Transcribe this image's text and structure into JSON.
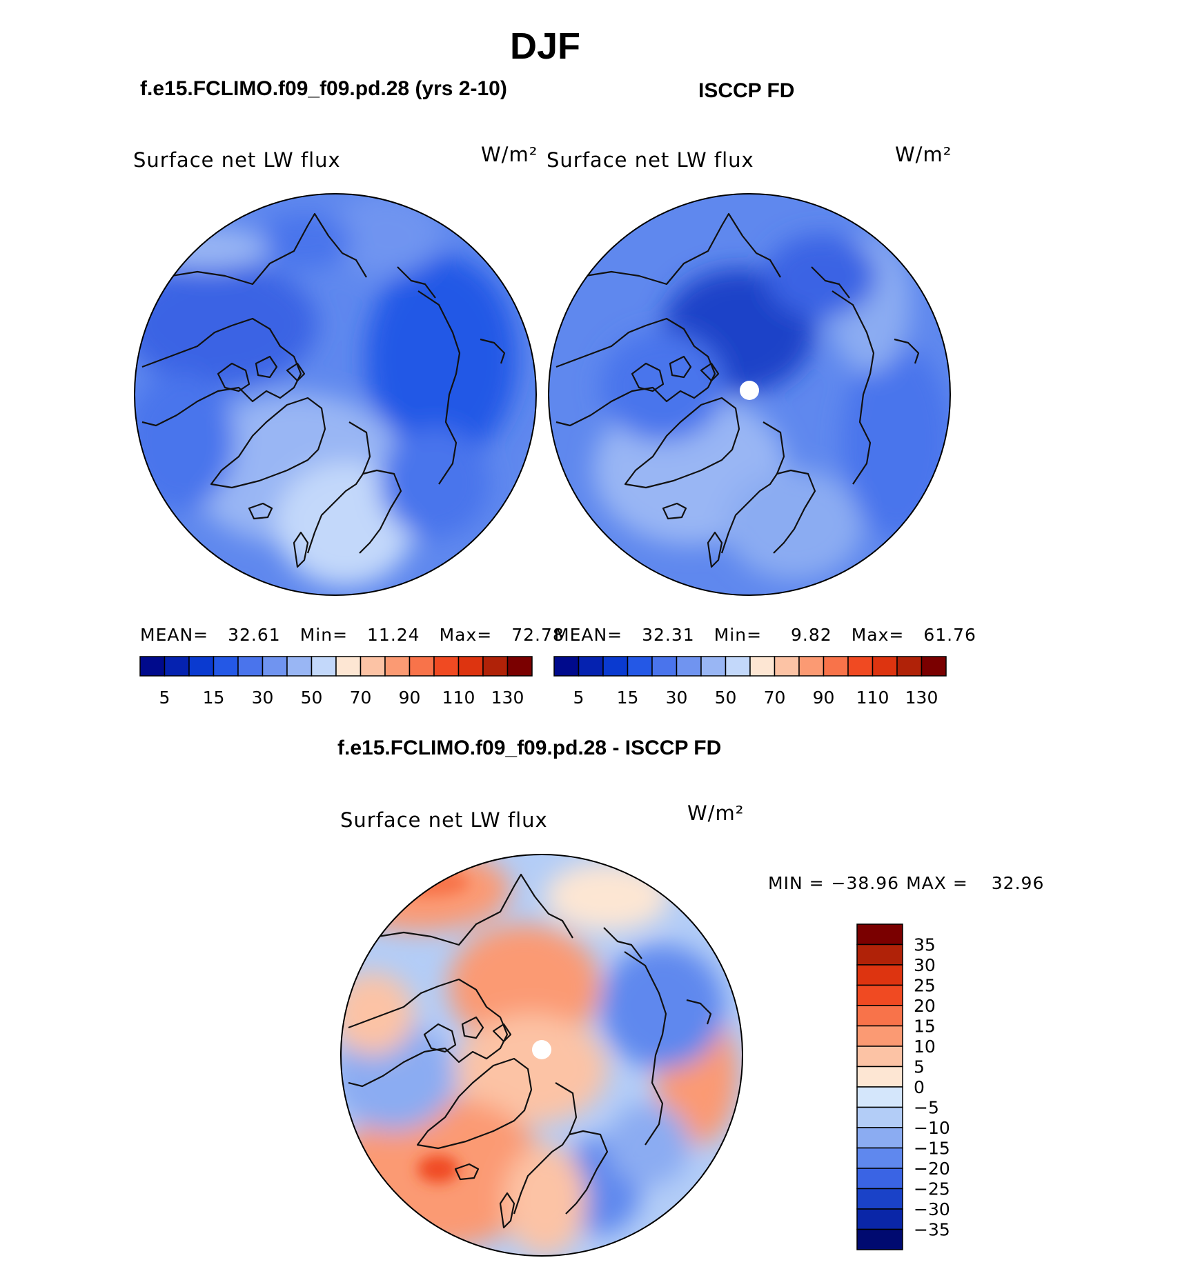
{
  "figure": {
    "title": "DJF",
    "diff_title": "f.e15.FCLIMO.f09_f09.pd.28 - ISCCP FD"
  },
  "panels": [
    {
      "case_title": "f.e15.FCLIMO.f09_f09.pd.28 (yrs 2-10)",
      "variable": "Surface net LW flux",
      "units": "W/m²",
      "stats": {
        "mean_label": "MEAN=",
        "mean": "32.61",
        "min_label": "Min=",
        "min": "11.24",
        "max_label": "Max=",
        "max": "72.78"
      }
    },
    {
      "case_title": "ISCCP FD",
      "variable": "Surface net LW flux",
      "units": "W/m²",
      "stats": {
        "mean_label": "MEAN=",
        "mean": "32.31",
        "min_label": "Min=",
        "min": "9.82",
        "max_label": "Max=",
        "max": "61.76"
      }
    }
  ],
  "diff_panel": {
    "variable": "Surface net LW flux",
    "units": "W/m²",
    "stats": {
      "min_label": "MIN =",
      "min": "−38.96",
      "max_label": "MAX =",
      "max": "32.96"
    }
  },
  "chart_data": [
    {
      "type": "heatmap",
      "name": "model",
      "projection": "north-polar-stereographic",
      "colorbar": {
        "orientation": "horizontal",
        "tick_labels": [
          "5",
          "15",
          "30",
          "50",
          "70",
          "90",
          "110",
          "130"
        ],
        "colors": [
          "#000a8c",
          "#0522b0",
          "#0a3ad0",
          "#2458e6",
          "#4a74ec",
          "#7094f0",
          "#99b6f4",
          "#c3d8fa",
          "#fde6d3",
          "#fcc3a5",
          "#fb9a73",
          "#f8734a",
          "#f04a22",
          "#dd3410",
          "#b02208",
          "#7a0000"
        ]
      }
    },
    {
      "type": "heatmap",
      "name": "obs",
      "projection": "north-polar-stereographic",
      "colorbar": {
        "orientation": "horizontal",
        "tick_labels": [
          "5",
          "15",
          "30",
          "50",
          "70",
          "90",
          "110",
          "130"
        ],
        "colors": [
          "#000a8c",
          "#0522b0",
          "#0a3ad0",
          "#2458e6",
          "#4a74ec",
          "#7094f0",
          "#99b6f4",
          "#c3d8fa",
          "#fde6d3",
          "#fcc3a5",
          "#fb9a73",
          "#f8734a",
          "#f04a22",
          "#dd3410",
          "#b02208",
          "#7a0000"
        ]
      }
    },
    {
      "type": "heatmap",
      "name": "difference",
      "projection": "north-polar-stereographic",
      "colorbar": {
        "orientation": "vertical",
        "tick_labels": [
          "35",
          "30",
          "25",
          "20",
          "15",
          "10",
          "5",
          "0",
          "−5",
          "−10",
          "−15",
          "−20",
          "−25",
          "−30",
          "−35"
        ],
        "colors": [
          "#7a0000",
          "#b02208",
          "#dd3410",
          "#f04a22",
          "#f8734a",
          "#fb9a73",
          "#fcc3a5",
          "#fde6d3",
          "#d4e6fb",
          "#b3cdf7",
          "#8bacf2",
          "#5f88ee",
          "#3a64e4",
          "#1a42c8",
          "#0a26a8",
          "#000a70"
        ]
      }
    }
  ]
}
